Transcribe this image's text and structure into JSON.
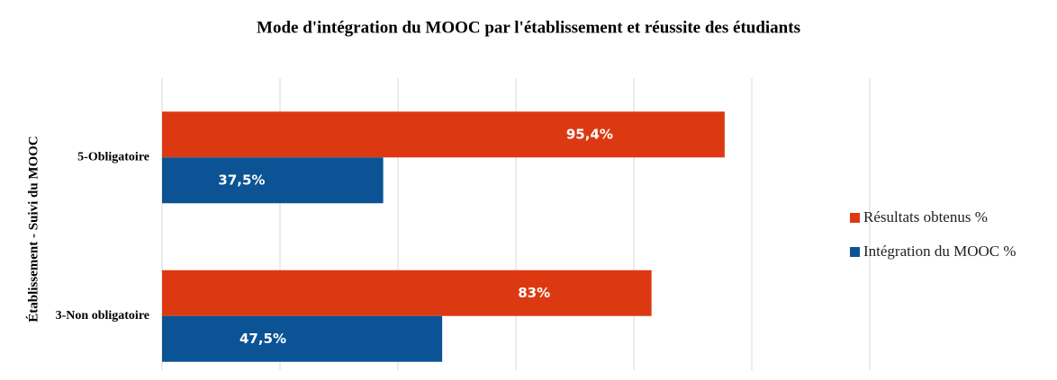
{
  "chart_data": {
    "type": "bar",
    "orientation": "horizontal",
    "title": "Mode d'intégration du MOOC par l'établissement et réussite des étudiants",
    "y_label": "Établissement - Suivi du MOOC",
    "categories": [
      "5-Obligatoire",
      "3-Non obligatoire"
    ],
    "series": [
      {
        "name": "Résultats obtenus %",
        "color": "#dc3912",
        "values": [
          95.4,
          83
        ],
        "value_labels": [
          "95,4%",
          "83%"
        ]
      },
      {
        "name": "Intégration du MOOC %",
        "color": "#0b5394",
        "values": [
          37.5,
          47.5
        ],
        "value_labels": [
          "37,5%",
          "47,5%"
        ]
      }
    ],
    "xlim": [
      0,
      120
    ],
    "xticks": [
      0,
      20,
      40,
      60,
      80,
      100,
      120
    ],
    "grid": true,
    "legend": "right"
  }
}
